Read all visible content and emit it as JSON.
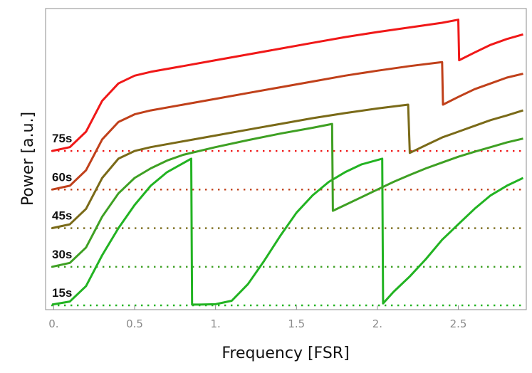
{
  "chart_data": {
    "type": "line",
    "title": "",
    "xlabel": "Frequency [FSR]",
    "ylabel": "Power [a.u.]",
    "xlim": [
      -0.05,
      2.92
    ],
    "ylim": [
      0,
      7.8
    ],
    "xticks": [
      0,
      0.5,
      1,
      1.5,
      2,
      2.5
    ],
    "xtick_labels": [
      "0.",
      "0.5",
      "1.",
      "1.5",
      "2.",
      "2.5"
    ],
    "grid": false,
    "series": [
      {
        "name": "15s",
        "color": "#22b322",
        "baseline": 0,
        "points": [
          [
            -0.01,
            0.02
          ],
          [
            0.1,
            0.1
          ],
          [
            0.2,
            0.5
          ],
          [
            0.3,
            1.3
          ],
          [
            0.4,
            2.0
          ],
          [
            0.5,
            2.6
          ],
          [
            0.6,
            3.1
          ],
          [
            0.7,
            3.45
          ],
          [
            0.85,
            3.8
          ],
          [
            0.855,
            0.02
          ],
          [
            0.9,
            0.02
          ],
          [
            1.0,
            0.03
          ],
          [
            1.1,
            0.12
          ],
          [
            1.2,
            0.55
          ],
          [
            1.3,
            1.15
          ],
          [
            1.4,
            1.8
          ],
          [
            1.5,
            2.4
          ],
          [
            1.6,
            2.85
          ],
          [
            1.7,
            3.2
          ],
          [
            1.8,
            3.45
          ],
          [
            1.9,
            3.65
          ],
          [
            2.03,
            3.8
          ],
          [
            2.035,
            0.05
          ],
          [
            2.1,
            0.35
          ],
          [
            2.2,
            0.75
          ],
          [
            2.3,
            1.2
          ],
          [
            2.4,
            1.7
          ],
          [
            2.5,
            2.1
          ],
          [
            2.6,
            2.5
          ],
          [
            2.7,
            2.85
          ],
          [
            2.8,
            3.1
          ],
          [
            2.9,
            3.3
          ]
        ]
      },
      {
        "name": "30s",
        "color": "#3ea023",
        "baseline": 1,
        "points": [
          [
            -0.01,
            1.0
          ],
          [
            0.1,
            1.1
          ],
          [
            0.2,
            1.5
          ],
          [
            0.3,
            2.3
          ],
          [
            0.4,
            2.9
          ],
          [
            0.5,
            3.3
          ],
          [
            0.6,
            3.55
          ],
          [
            0.7,
            3.75
          ],
          [
            0.8,
            3.9
          ],
          [
            1.0,
            4.1
          ],
          [
            1.2,
            4.28
          ],
          [
            1.4,
            4.45
          ],
          [
            1.6,
            4.6
          ],
          [
            1.72,
            4.7
          ],
          [
            1.725,
            2.45
          ],
          [
            1.8,
            2.6
          ],
          [
            1.9,
            2.8
          ],
          [
            2.0,
            3.0
          ],
          [
            2.1,
            3.2
          ],
          [
            2.2,
            3.38
          ],
          [
            2.3,
            3.55
          ],
          [
            2.4,
            3.7
          ],
          [
            2.5,
            3.85
          ],
          [
            2.6,
            3.98
          ],
          [
            2.7,
            4.1
          ],
          [
            2.8,
            4.22
          ],
          [
            2.9,
            4.32
          ]
        ]
      },
      {
        "name": "45s",
        "color": "#7a6a18",
        "baseline": 2,
        "points": [
          [
            -0.01,
            2.0
          ],
          [
            0.1,
            2.1
          ],
          [
            0.2,
            2.5
          ],
          [
            0.3,
            3.3
          ],
          [
            0.4,
            3.8
          ],
          [
            0.5,
            4.0
          ],
          [
            0.6,
            4.1
          ],
          [
            0.8,
            4.25
          ],
          [
            1.0,
            4.4
          ],
          [
            1.2,
            4.55
          ],
          [
            1.4,
            4.7
          ],
          [
            1.6,
            4.85
          ],
          [
            1.8,
            4.98
          ],
          [
            2.0,
            5.1
          ],
          [
            2.19,
            5.2
          ],
          [
            2.2,
            3.95
          ],
          [
            2.3,
            4.15
          ],
          [
            2.4,
            4.35
          ],
          [
            2.5,
            4.5
          ],
          [
            2.6,
            4.65
          ],
          [
            2.7,
            4.8
          ],
          [
            2.8,
            4.92
          ],
          [
            2.9,
            5.05
          ]
        ]
      },
      {
        "name": "60s",
        "color": "#c0401a",
        "baseline": 3,
        "points": [
          [
            -0.01,
            3.0
          ],
          [
            0.1,
            3.1
          ],
          [
            0.2,
            3.5
          ],
          [
            0.3,
            4.3
          ],
          [
            0.4,
            4.75
          ],
          [
            0.5,
            4.95
          ],
          [
            0.6,
            5.05
          ],
          [
            0.8,
            5.2
          ],
          [
            1.0,
            5.35
          ],
          [
            1.2,
            5.5
          ],
          [
            1.4,
            5.65
          ],
          [
            1.6,
            5.8
          ],
          [
            1.8,
            5.95
          ],
          [
            2.0,
            6.08
          ],
          [
            2.2,
            6.2
          ],
          [
            2.4,
            6.3
          ],
          [
            2.405,
            5.2
          ],
          [
            2.5,
            5.4
          ],
          [
            2.6,
            5.6
          ],
          [
            2.7,
            5.75
          ],
          [
            2.8,
            5.9
          ],
          [
            2.9,
            6.0
          ]
        ]
      },
      {
        "name": "75s",
        "color": "#f01818",
        "baseline": 4,
        "points": [
          [
            -0.01,
            4.0
          ],
          [
            0.1,
            4.1
          ],
          [
            0.2,
            4.5
          ],
          [
            0.3,
            5.3
          ],
          [
            0.4,
            5.75
          ],
          [
            0.5,
            5.95
          ],
          [
            0.6,
            6.05
          ],
          [
            0.8,
            6.2
          ],
          [
            1.0,
            6.35
          ],
          [
            1.2,
            6.5
          ],
          [
            1.4,
            6.65
          ],
          [
            1.6,
            6.8
          ],
          [
            1.8,
            6.95
          ],
          [
            2.0,
            7.08
          ],
          [
            2.2,
            7.2
          ],
          [
            2.4,
            7.32
          ],
          [
            2.5,
            7.4
          ],
          [
            2.505,
            6.35
          ],
          [
            2.6,
            6.55
          ],
          [
            2.7,
            6.75
          ],
          [
            2.8,
            6.9
          ],
          [
            2.9,
            7.02
          ]
        ]
      }
    ]
  }
}
